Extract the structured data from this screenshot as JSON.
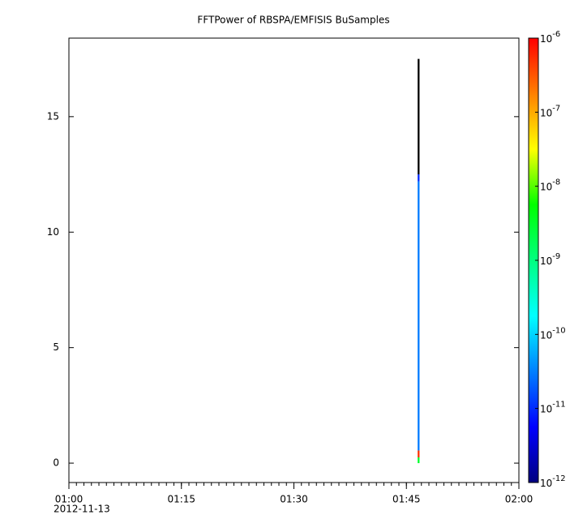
{
  "chart_data": {
    "type": "spectrogram",
    "title": "FFTPower of RBSPA/EMFISIS  BuSamples",
    "date_label": "2012-11-13",
    "xlim": [
      60,
      120
    ],
    "xticks": [
      {
        "value": 60,
        "label": "01:00"
      },
      {
        "value": 75,
        "label": "01:15"
      },
      {
        "value": 90,
        "label": "01:30"
      },
      {
        "value": 105,
        "label": "01:45"
      },
      {
        "value": 120,
        "label": "02:00"
      }
    ],
    "xminor_step": 1,
    "ylim": [
      -0.84,
      18.4
    ],
    "yticks": [
      0,
      5,
      10,
      15
    ],
    "xbins": [
      106.5,
      106.75
    ],
    "ybins": [
      0,
      0.25,
      0.55,
      12.2,
      12.5,
      17.5
    ],
    "z": [
      [
        3e-09,
        5e-07,
        3e-11,
        1e-11,
        1e-13
      ]
    ],
    "under_color": "#000000",
    "zscale": "log",
    "zlim": [
      1e-12,
      1e-06
    ],
    "zticks": [
      {
        "value": 1e-12,
        "label": "10",
        "exp": "-12"
      },
      {
        "value": 1e-11,
        "label": "10",
        "exp": "-11"
      },
      {
        "value": 1e-10,
        "label": "10",
        "exp": "-10"
      },
      {
        "value": 1e-09,
        "label": "10",
        "exp": "-9"
      },
      {
        "value": 1e-08,
        "label": "10",
        "exp": "-8"
      },
      {
        "value": 1e-07,
        "label": "10",
        "exp": "-7"
      },
      {
        "value": 1e-06,
        "label": "10",
        "exp": "-6"
      }
    ]
  }
}
